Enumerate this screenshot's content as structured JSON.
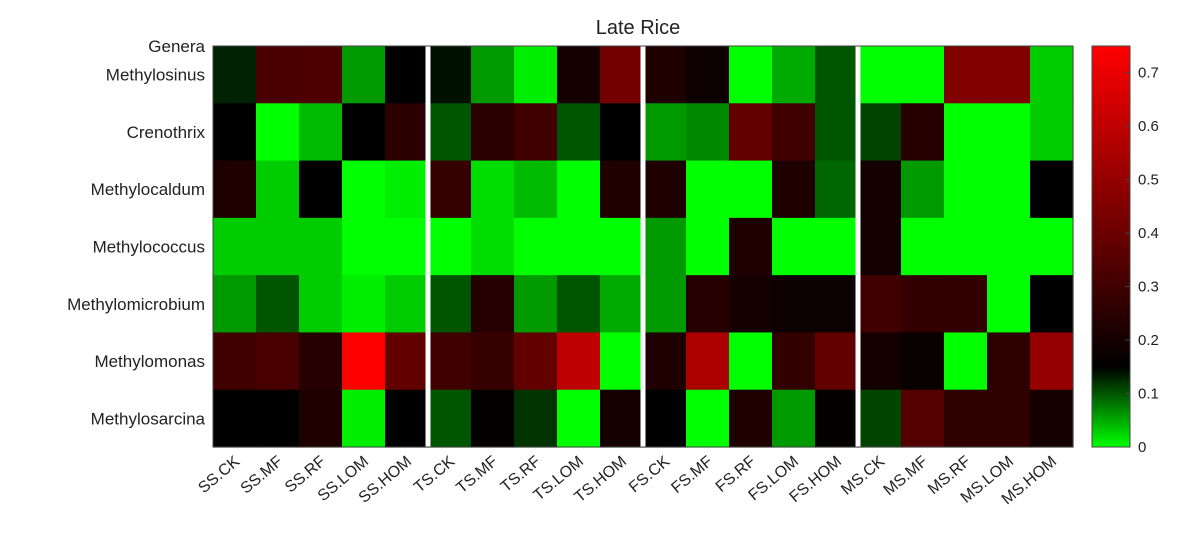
{
  "chart_data": {
    "type": "heatmap",
    "title": "Late Rice",
    "row_header": "Genera",
    "rows": [
      "Methylosinus",
      "Crenothrix",
      "Methylocaldum",
      "Methylococcus",
      "Methylomicrobium",
      "Methylomonas",
      "Methylosarcina"
    ],
    "columns": [
      "SS.CK",
      "SS.MF",
      "SS.RF",
      "SS.LOM",
      "SS.HOM",
      "TS.CK",
      "TS.MF",
      "TS.RF",
      "TS.LOM",
      "TS.HOM",
      "FS.CK",
      "FS.MF",
      "FS.RF",
      "FS.LOM",
      "FS.HOM",
      "MS.CK",
      "MS.MF",
      "MS.RF",
      "MS.LOM",
      "MS.HOM"
    ],
    "values": [
      [
        0.13,
        0.32,
        0.33,
        0.06,
        0.15,
        0.14,
        0.06,
        0.01,
        0.2,
        0.42,
        0.22,
        0.18,
        0.0,
        0.05,
        0.1,
        0.0,
        0.0,
        0.45,
        0.45,
        0.03
      ],
      [
        0.15,
        0.0,
        0.04,
        0.15,
        0.25,
        0.1,
        0.25,
        0.3,
        0.1,
        0.15,
        0.06,
        0.07,
        0.38,
        0.3,
        0.1,
        0.11,
        0.24,
        0.0,
        0.0,
        0.03
      ],
      [
        0.22,
        0.03,
        0.15,
        0.0,
        0.01,
        0.28,
        0.02,
        0.04,
        0.0,
        0.22,
        0.22,
        0.0,
        0.0,
        0.22,
        0.09,
        0.2,
        0.06,
        0.0,
        0.0,
        0.15
      ],
      [
        0.03,
        0.03,
        0.03,
        0.0,
        0.0,
        0.0,
        0.02,
        0.0,
        0.0,
        0.0,
        0.06,
        0.0,
        0.22,
        0.0,
        0.0,
        0.2,
        0.0,
        0.0,
        0.0,
        0.0
      ],
      [
        0.06,
        0.1,
        0.03,
        0.01,
        0.03,
        0.1,
        0.24,
        0.06,
        0.1,
        0.05,
        0.06,
        0.24,
        0.2,
        0.18,
        0.18,
        0.3,
        0.27,
        0.27,
        0.0,
        0.15
      ],
      [
        0.3,
        0.32,
        0.24,
        0.75,
        0.38,
        0.3,
        0.28,
        0.38,
        0.6,
        0.0,
        0.22,
        0.55,
        0.0,
        0.27,
        0.38,
        0.2,
        0.17,
        0.0,
        0.26,
        0.5
      ],
      [
        0.15,
        0.15,
        0.22,
        0.01,
        0.15,
        0.1,
        0.16,
        0.12,
        0.0,
        0.2,
        0.15,
        0.0,
        0.22,
        0.06,
        0.16,
        0.11,
        0.35,
        0.26,
        0.26,
        0.2
      ]
    ],
    "group_separators_after_columns": [
      5,
      10,
      15
    ],
    "colorbar": {
      "range": [
        0,
        0.75
      ],
      "ticks": [
        0,
        0.1,
        0.2,
        0.3,
        0.4,
        0.5,
        0.6,
        0.7
      ],
      "tick_labels": [
        "0",
        "0.1",
        "0.2",
        "0.3",
        "0.4",
        "0.5",
        "0.6",
        "0.7"
      ],
      "colormap": "green-black-red",
      "low_color": "#00ff00",
      "mid_color": "#000000",
      "mid_value": 0.15,
      "high_color": "#ff0000"
    },
    "grid": false,
    "colorbar_position": "right"
  }
}
